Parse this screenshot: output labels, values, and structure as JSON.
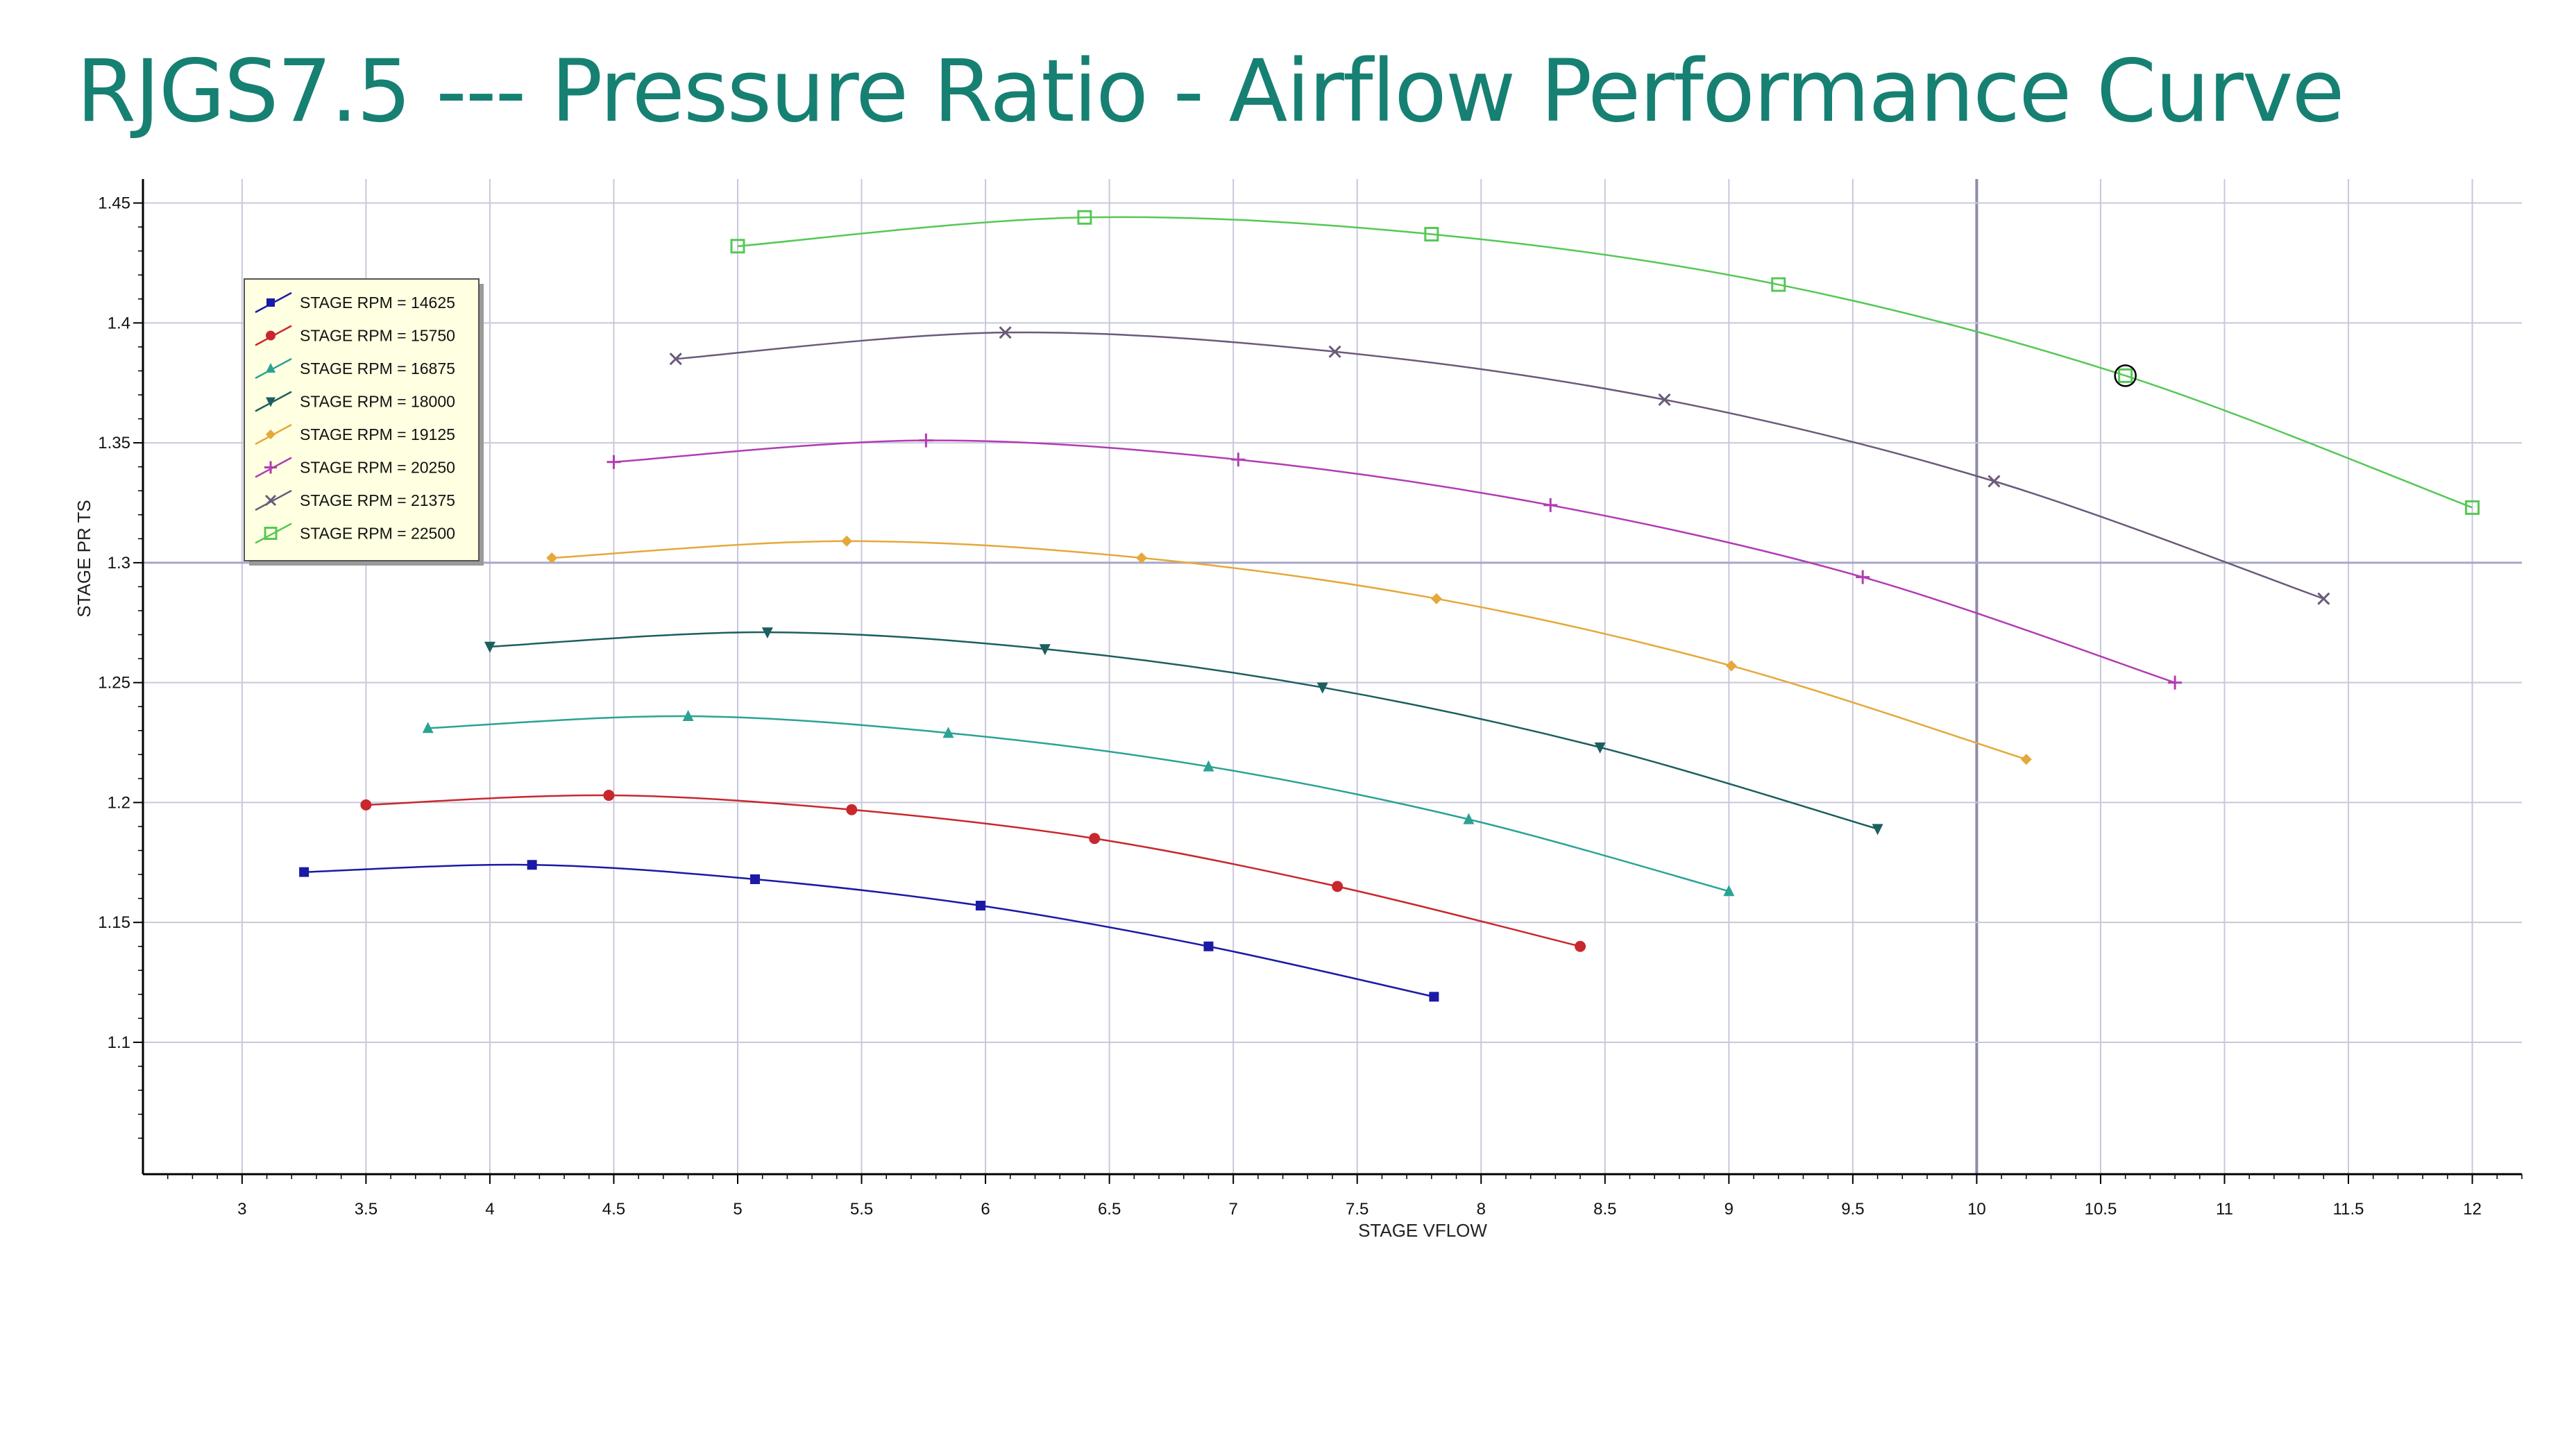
{
  "page": {
    "title": "RJGS7.5 --- Pressure Ratio - Airflow Performance Curve"
  },
  "colors": {
    "title": "#168073",
    "grid": "#c8c8dc",
    "axis": "#000000",
    "legend_bg": "#ffffe1"
  },
  "chart_data": {
    "type": "line",
    "title": "RJGS7.5 --- Pressure Ratio - Airflow Performance Curve",
    "xlabel": "STAGE VFLOW",
    "ylabel": "STAGE PR TS",
    "xlim": [
      2.6,
      12.2
    ],
    "ylim": [
      1.045,
      1.46
    ],
    "xticks": [
      3,
      3.5,
      4,
      4.5,
      5,
      5.5,
      6,
      6.5,
      7,
      7.5,
      8,
      8.5,
      9,
      9.5,
      10,
      10.5,
      11,
      11.5,
      12
    ],
    "xtick_labels": [
      "3",
      "3.5",
      "4",
      "4.5",
      "5",
      "5.5",
      "6",
      "6.5",
      "7",
      "7.5",
      "8",
      "8.5",
      "9",
      "9.5",
      "10",
      "10.5",
      "11",
      "11.5",
      "12"
    ],
    "yticks": [
      1.1,
      1.15,
      1.2,
      1.25,
      1.3,
      1.35,
      1.4,
      1.45
    ],
    "ytick_labels": [
      "1.1",
      "1.15",
      "1.2",
      "1.25",
      "1.3",
      "1.35",
      "1.4",
      "1.45"
    ],
    "grid": true,
    "legend_position": "top-left",
    "highlight_point": {
      "series": "STAGE RPM = 22500",
      "x": 10.6,
      "y": 1.378
    },
    "series": [
      {
        "name": "STAGE RPM = 14625",
        "color": "#1a1aa6",
        "marker": "square",
        "x": [
          3.25,
          4.17,
          5.07,
          5.98,
          6.9,
          7.81
        ],
        "y": [
          1.171,
          1.174,
          1.168,
          1.157,
          1.14,
          1.119
        ]
      },
      {
        "name": "STAGE RPM = 15750",
        "color": "#c8282d",
        "marker": "circle",
        "x": [
          3.5,
          4.48,
          5.46,
          6.44,
          7.42,
          8.4
        ],
        "y": [
          1.199,
          1.203,
          1.197,
          1.185,
          1.165,
          1.14
        ]
      },
      {
        "name": "STAGE RPM = 16875",
        "color": "#2aa394",
        "marker": "triangle",
        "x": [
          3.75,
          4.8,
          5.85,
          6.9,
          7.95,
          9.0
        ],
        "y": [
          1.231,
          1.236,
          1.229,
          1.215,
          1.193,
          1.163
        ]
      },
      {
        "name": "STAGE RPM = 18000",
        "color": "#1c5f5f",
        "marker": "triangle-down",
        "x": [
          4.0,
          5.12,
          6.24,
          7.36,
          8.48,
          9.6
        ],
        "y": [
          1.265,
          1.271,
          1.264,
          1.248,
          1.223,
          1.189
        ]
      },
      {
        "name": "STAGE RPM = 19125",
        "color": "#e5a83a",
        "marker": "diamond",
        "x": [
          4.25,
          5.44,
          6.63,
          7.82,
          9.01,
          10.2
        ],
        "y": [
          1.302,
          1.309,
          1.302,
          1.285,
          1.257,
          1.218
        ]
      },
      {
        "name": "STAGE RPM = 20250",
        "color": "#b23cb2",
        "marker": "plus",
        "x": [
          4.5,
          5.76,
          7.02,
          8.28,
          9.54,
          10.8
        ],
        "y": [
          1.342,
          1.351,
          1.343,
          1.324,
          1.294,
          1.25
        ]
      },
      {
        "name": "STAGE RPM = 21375",
        "color": "#6b5a7a",
        "marker": "cross",
        "x": [
          4.75,
          6.08,
          7.41,
          8.74,
          10.07,
          11.4
        ],
        "y": [
          1.385,
          1.396,
          1.388,
          1.368,
          1.334,
          1.285
        ]
      },
      {
        "name": "STAGE RPM = 22500",
        "color": "#55c855",
        "marker": "open-square",
        "x": [
          5.0,
          6.4,
          7.8,
          9.2,
          10.6,
          12.0
        ],
        "y": [
          1.432,
          1.444,
          1.437,
          1.416,
          1.378,
          1.323
        ]
      }
    ]
  }
}
